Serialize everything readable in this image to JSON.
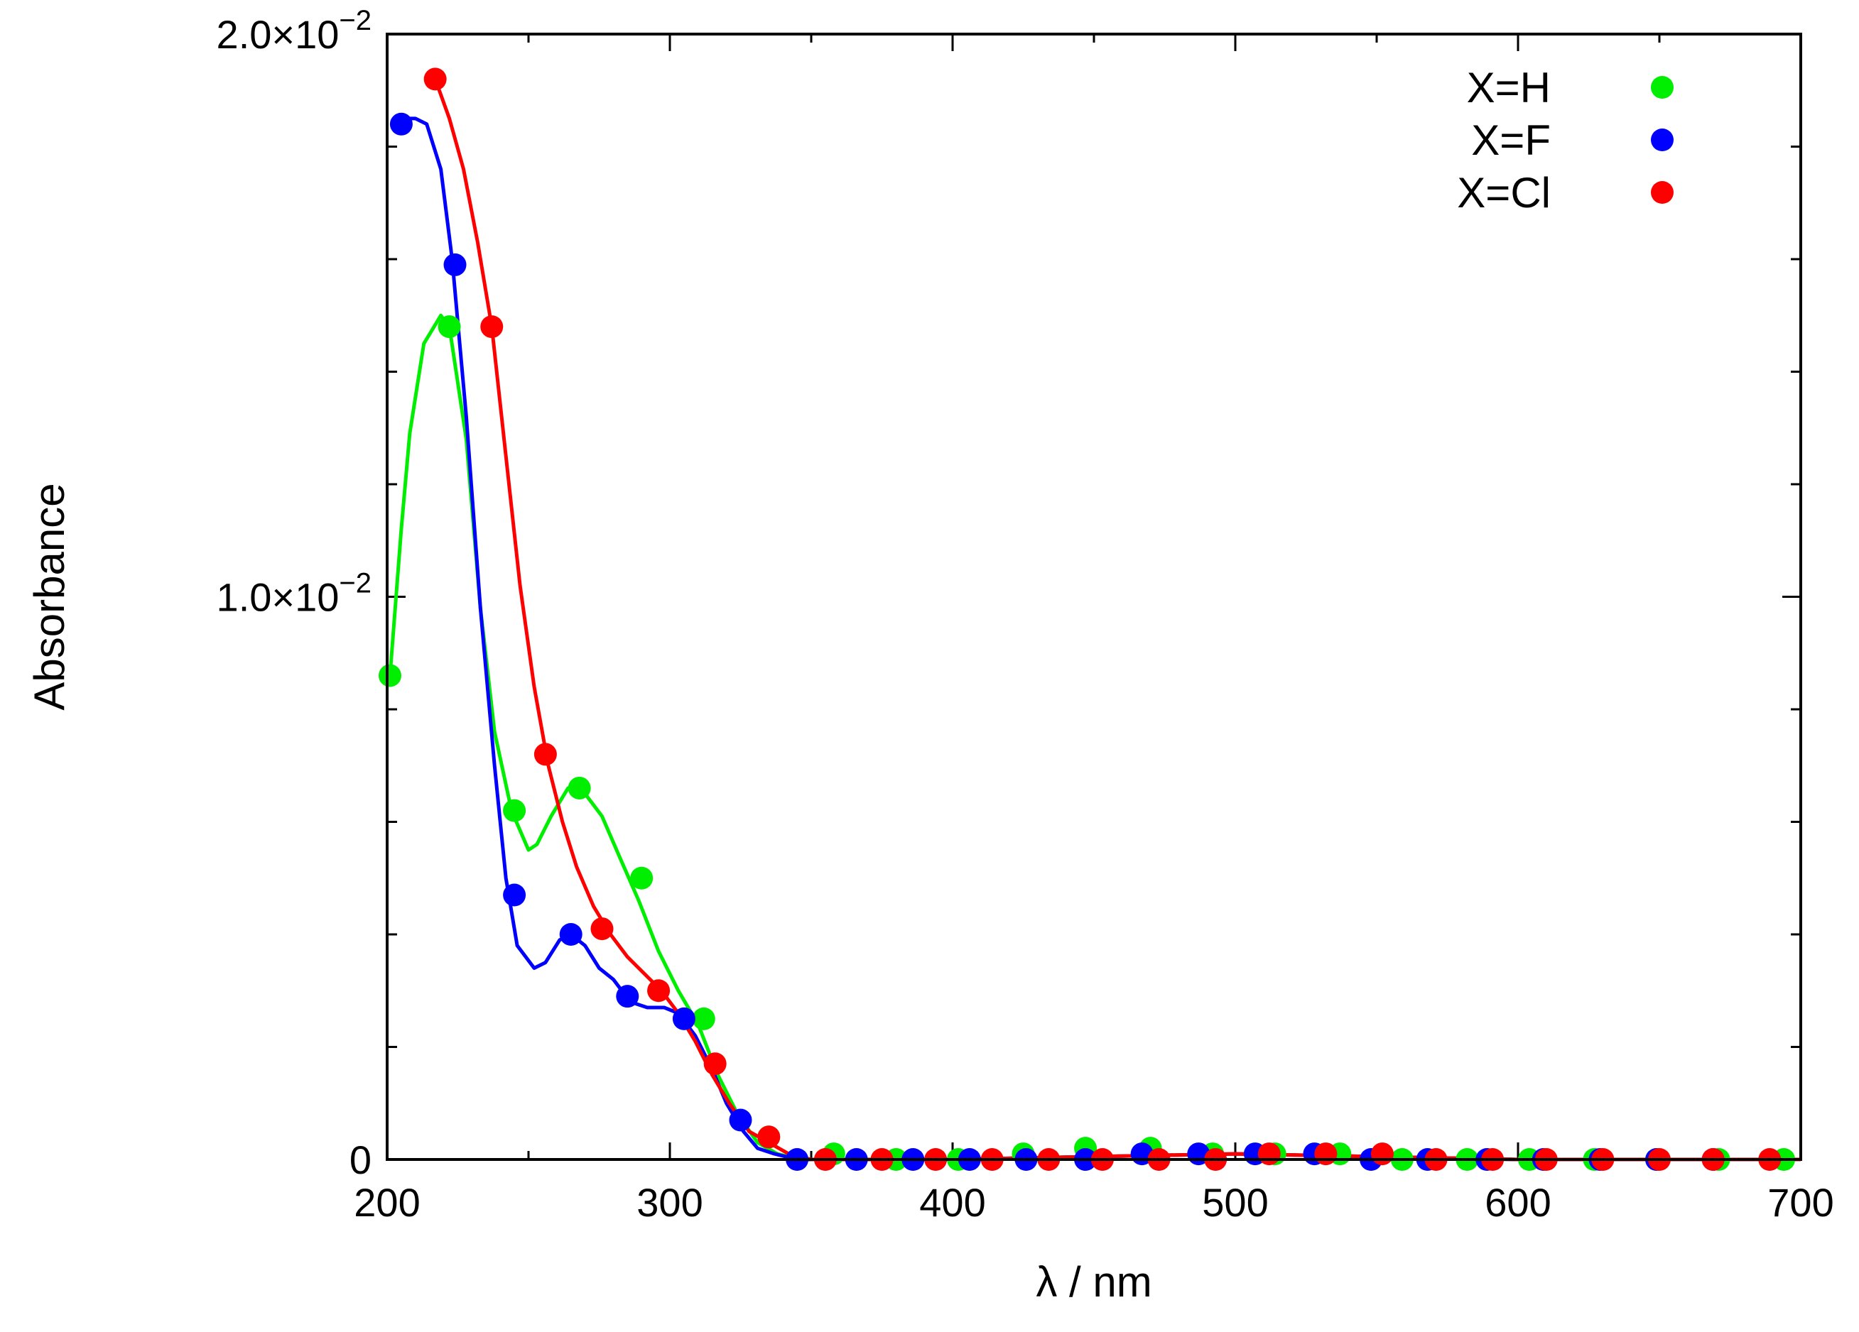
{
  "chart_data": {
    "type": "line",
    "xlabel": "λ / nm",
    "ylabel": "Absorbance",
    "xlim": [
      200,
      700
    ],
    "ylim": [
      0,
      0.02
    ],
    "x_ticks": [
      200,
      300,
      400,
      500,
      600,
      700
    ],
    "x_tick_labels": [
      "200",
      "300",
      "400",
      "500",
      "600",
      "700"
    ],
    "y_ticks": [
      {
        "value": 0,
        "label": "0"
      },
      {
        "value": 0.01,
        "mantissa": "1.0×10",
        "exponent": "−2"
      },
      {
        "value": 0.02,
        "mantissa": "2.0×10",
        "exponent": "−2"
      }
    ],
    "y_minor_step": 0.002,
    "legend_position": "top-right",
    "series": [
      {
        "name": "X=H",
        "color": "#00ee00",
        "line": [
          [
            201,
            0.0086
          ],
          [
            205,
            0.0112
          ],
          [
            208,
            0.0129
          ],
          [
            213,
            0.0145
          ],
          [
            219,
            0.015
          ],
          [
            222,
            0.0148
          ],
          [
            228,
            0.0128
          ],
          [
            233,
            0.0098
          ],
          [
            238,
            0.0076
          ],
          [
            244,
            0.0062
          ],
          [
            250,
            0.0055
          ],
          [
            253,
            0.0056
          ],
          [
            258,
            0.0061
          ],
          [
            264,
            0.0066
          ],
          [
            270,
            0.0065
          ],
          [
            276,
            0.0061
          ],
          [
            282,
            0.0054
          ],
          [
            289,
            0.0046
          ],
          [
            296,
            0.0037
          ],
          [
            303,
            0.003
          ],
          [
            310,
            0.0024
          ],
          [
            317,
            0.0015
          ],
          [
            324,
            0.0008
          ],
          [
            331,
            0.0003
          ],
          [
            338,
            0.0001
          ],
          [
            346,
            0.0
          ],
          [
            400,
            0.0
          ],
          [
            450,
            5e-05
          ],
          [
            500,
            0.0001
          ],
          [
            550,
            5e-05
          ],
          [
            600,
            0.0
          ],
          [
            700,
            0.0
          ]
        ],
        "points": [
          [
            201,
            0.0086
          ],
          [
            222,
            0.0148
          ],
          [
            245,
            0.0062
          ],
          [
            268,
            0.0066
          ],
          [
            290,
            0.005
          ],
          [
            312,
            0.0025
          ],
          [
            335,
            0.0004
          ],
          [
            358,
            0.0001
          ],
          [
            380,
            0.0
          ],
          [
            402,
            0.0
          ],
          [
            425,
            0.0001
          ],
          [
            447,
            0.0002
          ],
          [
            470,
            0.0002
          ],
          [
            492,
            0.0001
          ],
          [
            514,
            0.0001
          ],
          [
            537,
            0.0001
          ],
          [
            559,
            0.0
          ],
          [
            582,
            0.0
          ],
          [
            604,
            0.0
          ],
          [
            627,
            0.0
          ],
          [
            649,
            0.0
          ],
          [
            671,
            0.0
          ],
          [
            694,
            0.0
          ]
        ]
      },
      {
        "name": "X=F",
        "color": "#0000ff",
        "line": [
          [
            203,
            0.0184
          ],
          [
            205,
            0.0185
          ],
          [
            210,
            0.0185
          ],
          [
            214,
            0.0184
          ],
          [
            219,
            0.0176
          ],
          [
            223,
            0.016
          ],
          [
            228,
            0.0132
          ],
          [
            233,
            0.0098
          ],
          [
            238,
            0.007
          ],
          [
            242,
            0.005
          ],
          [
            246,
            0.0038
          ],
          [
            252,
            0.0034
          ],
          [
            256,
            0.0035
          ],
          [
            261,
            0.0039
          ],
          [
            265,
            0.004
          ],
          [
            270,
            0.0038
          ],
          [
            275,
            0.0034
          ],
          [
            280,
            0.0032
          ],
          [
            286,
            0.0028
          ],
          [
            292,
            0.0027
          ],
          [
            298,
            0.0027
          ],
          [
            303,
            0.0026
          ],
          [
            309,
            0.0022
          ],
          [
            315,
            0.0016
          ],
          [
            320,
            0.001
          ],
          [
            326,
            0.0005
          ],
          [
            331,
            0.0002
          ],
          [
            337,
            0.0001
          ],
          [
            345,
            0.0
          ],
          [
            400,
            0.0
          ],
          [
            450,
            5e-05
          ],
          [
            500,
            0.0001
          ],
          [
            550,
            5e-05
          ],
          [
            600,
            0.0
          ],
          [
            700,
            0.0
          ]
        ],
        "points": [
          [
            205,
            0.0184
          ],
          [
            224,
            0.0159
          ],
          [
            245,
            0.0047
          ],
          [
            265,
            0.004
          ],
          [
            285,
            0.0029
          ],
          [
            305,
            0.0025
          ],
          [
            325,
            0.0007
          ],
          [
            345,
            0.0
          ],
          [
            366,
            0.0
          ],
          [
            386,
            0.0
          ],
          [
            406,
            0.0
          ],
          [
            426,
            0.0
          ],
          [
            447,
            0.0
          ],
          [
            467,
            0.0001
          ],
          [
            487,
            0.0001
          ],
          [
            507,
            0.0001
          ],
          [
            528,
            0.0001
          ],
          [
            548,
            0.0
          ],
          [
            568,
            0.0
          ],
          [
            589,
            0.0
          ],
          [
            609,
            0.0
          ],
          [
            629,
            0.0
          ],
          [
            649,
            0.0
          ],
          [
            669,
            0.0
          ]
        ]
      },
      {
        "name": "X=Cl",
        "color": "#ff0000",
        "line": [
          [
            217,
            0.0192
          ],
          [
            222,
            0.0185
          ],
          [
            227,
            0.0176
          ],
          [
            232,
            0.0163
          ],
          [
            237,
            0.0148
          ],
          [
            242,
            0.0125
          ],
          [
            247,
            0.0102
          ],
          [
            252,
            0.0084
          ],
          [
            257,
            0.007
          ],
          [
            262,
            0.006
          ],
          [
            267,
            0.0052
          ],
          [
            273,
            0.0045
          ],
          [
            279,
            0.004
          ],
          [
            285,
            0.0036
          ],
          [
            291,
            0.0033
          ],
          [
            297,
            0.003
          ],
          [
            303,
            0.0026
          ],
          [
            309,
            0.0021
          ],
          [
            315,
            0.0015
          ],
          [
            321,
            0.001
          ],
          [
            328,
            0.0005
          ],
          [
            335,
            0.0003
          ],
          [
            342,
            0.0001
          ],
          [
            350,
            0.0
          ],
          [
            400,
            0.0
          ],
          [
            450,
            5e-05
          ],
          [
            500,
            0.0001
          ],
          [
            550,
            5e-05
          ],
          [
            600,
            0.0
          ],
          [
            700,
            0.0
          ]
        ],
        "points": [
          [
            217,
            0.0192
          ],
          [
            237,
            0.0148
          ],
          [
            256,
            0.0072
          ],
          [
            276,
            0.0041
          ],
          [
            296,
            0.003
          ],
          [
            316,
            0.0017
          ],
          [
            335,
            0.0004
          ],
          [
            355,
            0.0
          ],
          [
            375,
            0.0
          ],
          [
            394,
            0.0
          ],
          [
            414,
            0.0
          ],
          [
            434,
            0.0
          ],
          [
            453,
            0.0
          ],
          [
            473,
            0.0
          ],
          [
            493,
            0.0
          ],
          [
            512,
            0.0001
          ],
          [
            532,
            0.0001
          ],
          [
            552,
            0.0001
          ],
          [
            571,
            0.0
          ],
          [
            591,
            0.0
          ],
          [
            610,
            0.0
          ],
          [
            630,
            0.0
          ],
          [
            650,
            0.0
          ],
          [
            669,
            0.0
          ],
          [
            689,
            0.0
          ]
        ]
      }
    ]
  }
}
